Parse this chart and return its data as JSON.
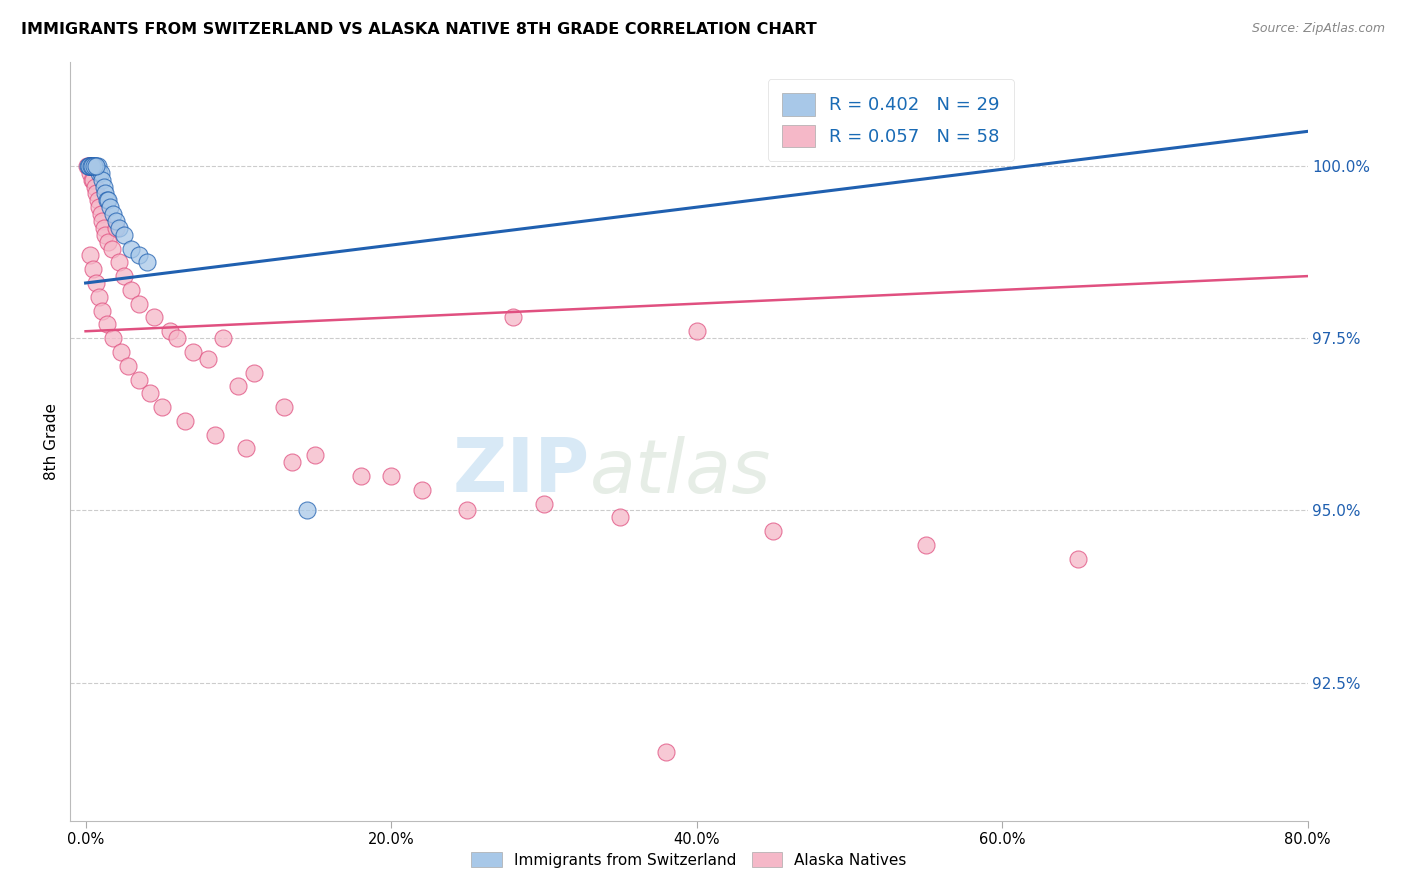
{
  "title": "IMMIGRANTS FROM SWITZERLAND VS ALASKA NATIVE 8TH GRADE CORRELATION CHART",
  "source": "Source: ZipAtlas.com",
  "ylabel": "8th Grade",
  "yticks": [
    92.5,
    95.0,
    97.5,
    100.0
  ],
  "ytick_labels": [
    "92.5%",
    "95.0%",
    "97.5%",
    "100.0%"
  ],
  "xticks": [
    0,
    20,
    40,
    60,
    80
  ],
  "xtick_labels": [
    "0.0%",
    "20.0%",
    "40.0%",
    "60.0%",
    "80.0%"
  ],
  "xmin": -1.0,
  "xmax": 80.0,
  "ymin": 90.5,
  "ymax": 101.5,
  "legend_blue_label": "R = 0.402   N = 29",
  "legend_pink_label": "R = 0.057   N = 58",
  "blue_color": "#a8c8e8",
  "pink_color": "#f5b8c8",
  "blue_line_color": "#2060b0",
  "pink_line_color": "#e05080",
  "watermark_zip": "ZIP",
  "watermark_atlas": "atlas",
  "blue_line_x0": 0.0,
  "blue_line_y0": 98.3,
  "blue_line_x1": 80.0,
  "blue_line_y1": 100.5,
  "pink_line_x0": 0.0,
  "pink_line_y0": 97.6,
  "pink_line_x1": 80.0,
  "pink_line_y1": 98.4,
  "blue_scatter_x": [
    0.2,
    0.3,
    0.4,
    0.5,
    0.6,
    0.7,
    0.8,
    0.9,
    1.0,
    1.1,
    1.2,
    1.3,
    1.4,
    1.5,
    1.6,
    1.8,
    2.0,
    2.2,
    2.5,
    3.0,
    3.5,
    4.0,
    0.15,
    0.25,
    0.35,
    0.45,
    0.55,
    0.65,
    14.5
  ],
  "blue_scatter_y": [
    100.0,
    100.0,
    100.0,
    100.0,
    100.0,
    100.0,
    100.0,
    99.9,
    99.9,
    99.8,
    99.7,
    99.6,
    99.5,
    99.5,
    99.4,
    99.3,
    99.2,
    99.1,
    99.0,
    98.8,
    98.7,
    98.6,
    100.0,
    100.0,
    100.0,
    100.0,
    100.0,
    100.0,
    95.0
  ],
  "pink_scatter_x": [
    0.1,
    0.2,
    0.3,
    0.4,
    0.5,
    0.6,
    0.7,
    0.8,
    0.9,
    1.0,
    1.1,
    1.2,
    1.3,
    1.5,
    1.7,
    2.0,
    2.2,
    2.5,
    3.0,
    3.5,
    4.5,
    5.5,
    6.0,
    7.0,
    8.0,
    9.0,
    10.0,
    11.0,
    13.0,
    15.0,
    20.0,
    25.0,
    28.0,
    38.0,
    40.0,
    0.3,
    0.5,
    0.7,
    0.9,
    1.1,
    1.4,
    1.8,
    2.3,
    2.8,
    3.5,
    4.2,
    5.0,
    6.5,
    8.5,
    10.5,
    13.5,
    18.0,
    22.0,
    30.0,
    35.0,
    45.0,
    55.0,
    65.0
  ],
  "pink_scatter_y": [
    100.0,
    100.0,
    99.9,
    99.8,
    99.8,
    99.7,
    99.6,
    99.5,
    99.4,
    99.3,
    99.2,
    99.1,
    99.0,
    98.9,
    98.8,
    99.1,
    98.6,
    98.4,
    98.2,
    98.0,
    97.8,
    97.6,
    97.5,
    97.3,
    97.2,
    97.5,
    96.8,
    97.0,
    96.5,
    95.8,
    95.5,
    95.0,
    97.8,
    91.5,
    97.6,
    98.7,
    98.5,
    98.3,
    98.1,
    97.9,
    97.7,
    97.5,
    97.3,
    97.1,
    96.9,
    96.7,
    96.5,
    96.3,
    96.1,
    95.9,
    95.7,
    95.5,
    95.3,
    95.1,
    94.9,
    94.7,
    94.5,
    94.3
  ]
}
